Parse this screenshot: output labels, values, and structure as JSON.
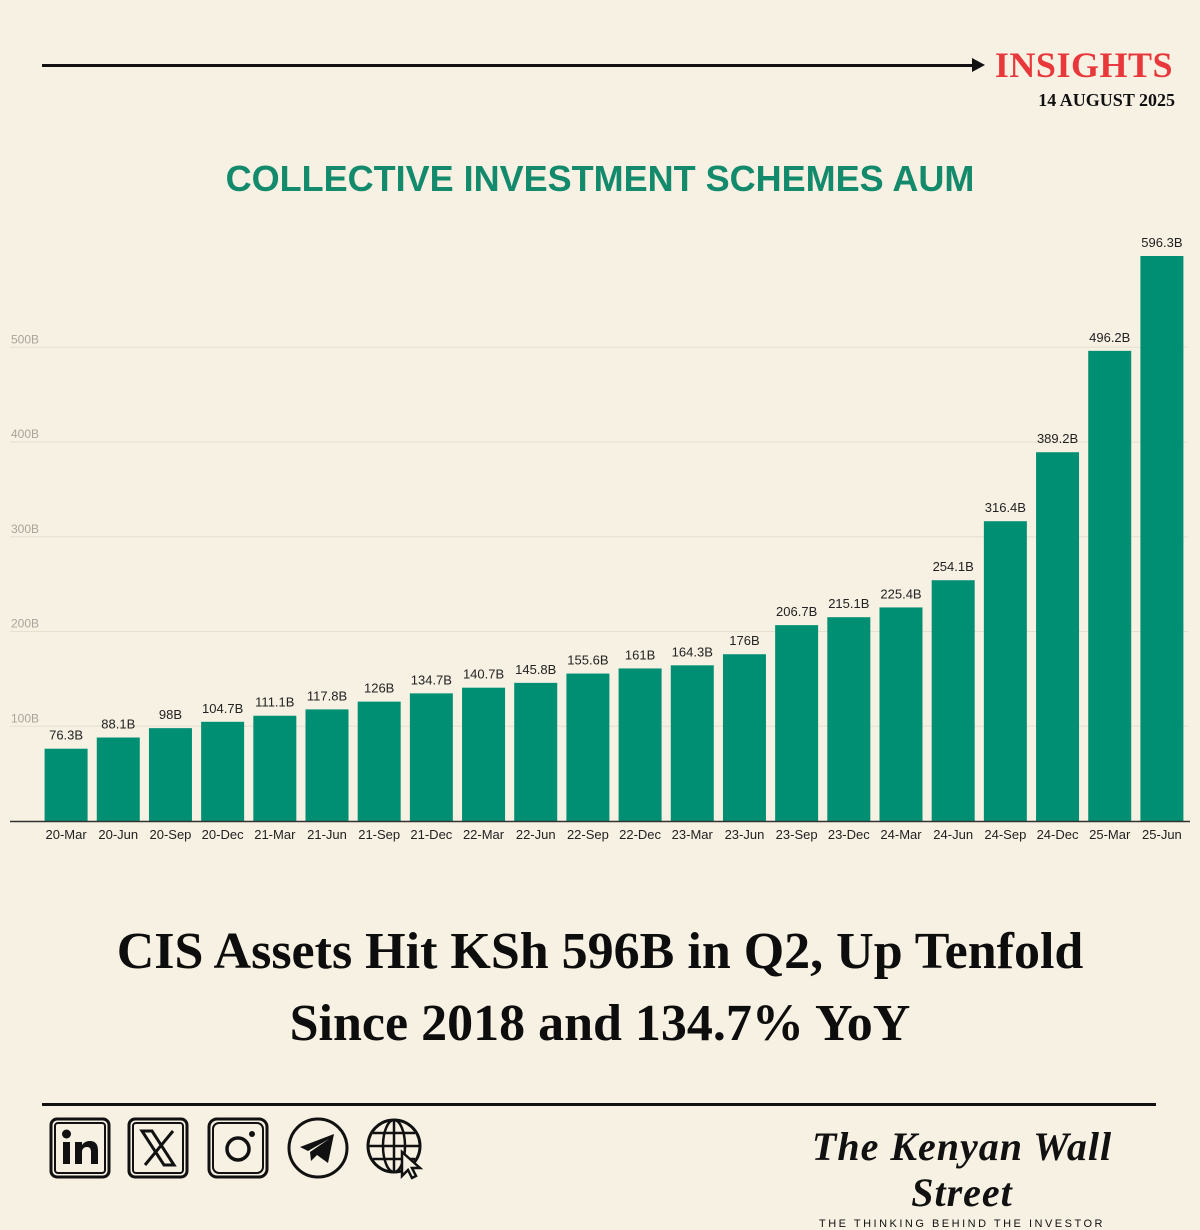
{
  "header": {
    "section_label": "INSIGHTS",
    "date": "14 AUGUST 2025"
  },
  "colors": {
    "background": "#f7f1e3",
    "bar": "#008f72",
    "title": "#128a6b",
    "accent": "#e8383b",
    "text": "#111111"
  },
  "chart_data": {
    "type": "bar",
    "title": "COLLECTIVE INVESTMENT SCHEMES AUM",
    "categories": [
      "20-Mar",
      "20-Jun",
      "20-Sep",
      "20-Dec",
      "21-Mar",
      "21-Jun",
      "21-Sep",
      "21-Dec",
      "22-Mar",
      "22-Jun",
      "22-Sep",
      "22-Dec",
      "23-Mar",
      "23-Jun",
      "23-Sep",
      "23-Dec",
      "24-Mar",
      "24-Jun",
      "24-Sep",
      "24-Dec",
      "25-Mar",
      "25-Jun"
    ],
    "values": [
      76.3,
      88.1,
      98,
      104.7,
      111.1,
      117.8,
      126,
      134.7,
      140.7,
      145.8,
      155.6,
      161,
      164.3,
      176,
      206.7,
      215.1,
      225.4,
      254.1,
      316.4,
      389.2,
      496.2,
      596.3
    ],
    "data_labels": [
      "76.3B",
      "88.1B",
      "98B",
      "104.7B",
      "111.1B",
      "117.8B",
      "126B",
      "134.7B",
      "140.7B",
      "145.8B",
      "155.6B",
      "161B",
      "164.3B",
      "176B",
      "206.7B",
      "215.1B",
      "225.4B",
      "254.1B",
      "316.4B",
      "389.2B",
      "496.2B",
      "596.3B"
    ],
    "y_ticks": [
      100,
      200,
      300,
      400,
      500
    ],
    "y_tick_labels": [
      "100B",
      "200B",
      "300B",
      "400B",
      "500B"
    ],
    "ylim": [
      0,
      600
    ],
    "grid": true,
    "legend": "none"
  },
  "headline": {
    "line1": "CIS Assets Hit KSh 596B in Q2, Up Tenfold",
    "line2": "Since 2018 and 134.7% YoY"
  },
  "social_icons": [
    "linkedin-icon",
    "x-icon",
    "instagram-icon",
    "telegram-icon",
    "website-icon"
  ],
  "brand": {
    "name": "The Kenyan Wall Street",
    "tagline": "THE THINKING BEHIND THE INVESTOR"
  }
}
